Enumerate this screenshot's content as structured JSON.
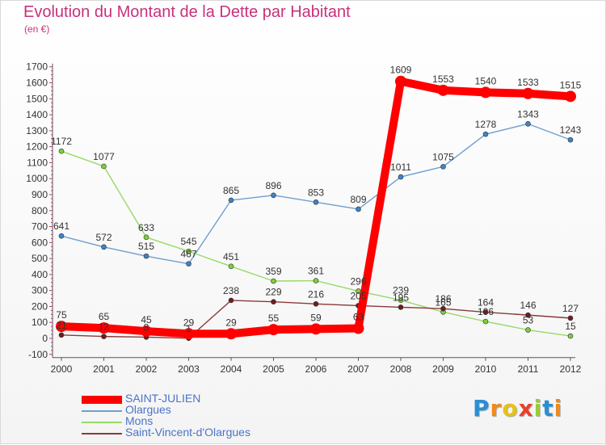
{
  "chart_data": {
    "type": "line",
    "title": "Evolution du Montant de la Dette par Habitant",
    "subtitle": "(en €)",
    "ylim": [
      -100,
      1700
    ],
    "ytick_step": 100,
    "grid": false,
    "legend_position": "bottom-left",
    "x": [
      "2000",
      "2001",
      "2002",
      "2003",
      "2004",
      "2005",
      "2006",
      "2007",
      "2008",
      "2009",
      "2010",
      "2011",
      "2012"
    ],
    "series": [
      {
        "name": "SAINT-JULIEN",
        "color": "#ff0000",
        "emphasis": true,
        "values": [
          75,
          65,
          45,
          29,
          29,
          55,
          59,
          63,
          1609,
          1553,
          1540,
          1533,
          1515
        ],
        "labels": [
          "75",
          "65",
          "45",
          "29",
          "29",
          "55",
          "59",
          "63",
          "1609",
          "1553",
          "1540",
          "1533",
          "1515"
        ]
      },
      {
        "name": "Olargues",
        "color": "#6f9fd0",
        "marker": "#3b84c8",
        "values": [
          641,
          572,
          515,
          467,
          865,
          896,
          853,
          809,
          1011,
          1075,
          1278,
          1343,
          1243
        ],
        "labels": [
          "641",
          "572",
          "515",
          "467",
          "865",
          "896",
          "853",
          "809",
          "1011",
          "1075",
          "1278",
          "1343",
          "1243"
        ]
      },
      {
        "name": "Mons",
        "color": "#99d966",
        "marker": "#7ccf3c",
        "values": [
          1172,
          1077,
          633,
          545,
          451,
          359,
          361,
          296,
          239,
          165,
          106,
          53,
          15
        ],
        "labels": [
          "1172",
          "1077",
          "633",
          "545",
          "451",
          "359",
          "361",
          "296",
          "239",
          "165",
          "106",
          "53",
          "15"
        ]
      },
      {
        "name": "Saint-Vincent-d'Olargues",
        "color": "#8b3a3a",
        "marker": "#6e1d1d",
        "values": [
          21,
          12,
          8,
          1,
          238,
          229,
          216,
          205,
          195,
          186,
          164,
          146,
          127
        ],
        "labels": [
          "21",
          "12",
          "8",
          "1",
          "238",
          "229",
          "216",
          "205",
          "195",
          "186",
          "164",
          "146",
          "127"
        ]
      }
    ]
  },
  "branding": {
    "letters": [
      "P",
      "r",
      "o",
      "x",
      "i",
      "t",
      "i"
    ],
    "colors": [
      "#2a8fd4",
      "#f08a1c",
      "#e6c21a",
      "#e8412c",
      "#9acd32",
      "#2a8fd4",
      "#f08a1c"
    ]
  }
}
